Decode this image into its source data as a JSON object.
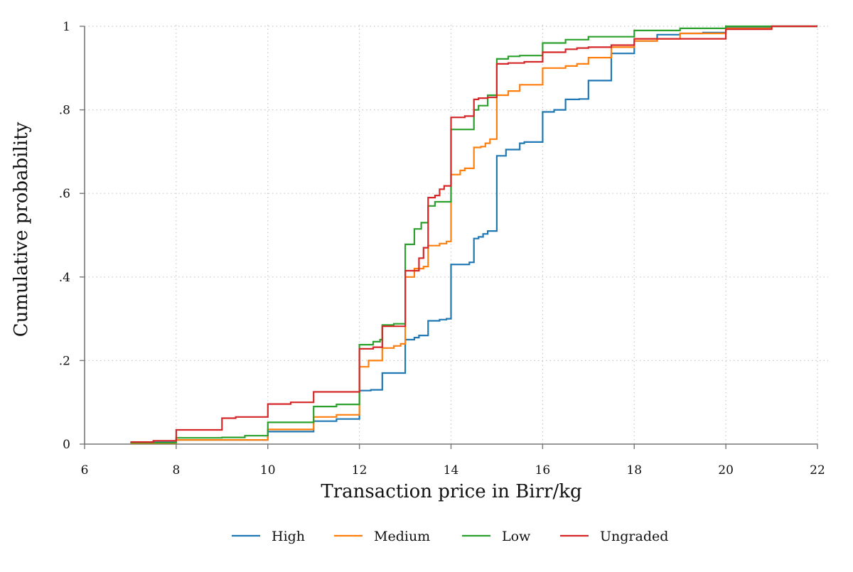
{
  "chart_data": {
    "type": "line",
    "step": true,
    "title": "",
    "xlabel": "Transaction price in Birr/kg",
    "ylabel": "Cumulative probability",
    "xlim": [
      6,
      22
    ],
    "ylim": [
      0,
      1
    ],
    "xticks": [
      6,
      8,
      10,
      12,
      14,
      16,
      18,
      20,
      22
    ],
    "yticks": [
      0,
      0.2,
      0.4,
      0.6,
      0.8,
      1
    ],
    "xtick_labels": [
      "6",
      "8",
      "10",
      "12",
      "14",
      "16",
      "18",
      "20",
      "22"
    ],
    "ytick_labels": [
      "0",
      ".2",
      ".4",
      ".6",
      ".8",
      "1"
    ],
    "grid": true,
    "legend_position": "bottom",
    "series": [
      {
        "name": "High",
        "color": "#1f77b4",
        "points": [
          [
            7,
            0.004
          ],
          [
            8,
            0.01
          ],
          [
            10,
            0.03
          ],
          [
            11,
            0.055
          ],
          [
            11.5,
            0.06
          ],
          [
            12,
            0.128
          ],
          [
            12.25,
            0.13
          ],
          [
            12.5,
            0.17
          ],
          [
            13,
            0.25
          ],
          [
            13.2,
            0.255
          ],
          [
            13.3,
            0.26
          ],
          [
            13.5,
            0.295
          ],
          [
            13.75,
            0.298
          ],
          [
            13.9,
            0.3
          ],
          [
            14,
            0.43
          ],
          [
            14.4,
            0.435
          ],
          [
            14.5,
            0.492
          ],
          [
            14.6,
            0.496
          ],
          [
            14.7,
            0.503
          ],
          [
            14.8,
            0.51
          ],
          [
            15,
            0.69
          ],
          [
            15.2,
            0.705
          ],
          [
            15.5,
            0.72
          ],
          [
            15.6,
            0.723
          ],
          [
            16,
            0.795
          ],
          [
            16.25,
            0.8
          ],
          [
            16.5,
            0.825
          ],
          [
            16.8,
            0.826
          ],
          [
            17,
            0.87
          ],
          [
            17.5,
            0.935
          ],
          [
            18,
            0.965
          ],
          [
            18.5,
            0.98
          ],
          [
            19,
            0.983
          ],
          [
            19.5,
            0.985
          ],
          [
            20,
            0.998
          ],
          [
            21,
            1
          ],
          [
            22,
            1
          ]
        ]
      },
      {
        "name": "Medium",
        "color": "#ff7f0e",
        "points": [
          [
            7,
            0.002
          ],
          [
            8,
            0.01
          ],
          [
            9.5,
            0.01
          ],
          [
            10,
            0.035
          ],
          [
            11,
            0.065
          ],
          [
            11.5,
            0.07
          ],
          [
            12,
            0.185
          ],
          [
            12.2,
            0.2
          ],
          [
            12.5,
            0.23
          ],
          [
            12.75,
            0.235
          ],
          [
            12.9,
            0.24
          ],
          [
            13,
            0.4
          ],
          [
            13.2,
            0.42
          ],
          [
            13.4,
            0.425
          ],
          [
            13.5,
            0.475
          ],
          [
            13.75,
            0.48
          ],
          [
            13.9,
            0.485
          ],
          [
            14,
            0.645
          ],
          [
            14.2,
            0.655
          ],
          [
            14.3,
            0.66
          ],
          [
            14.5,
            0.71
          ],
          [
            14.65,
            0.712
          ],
          [
            14.75,
            0.72
          ],
          [
            14.85,
            0.73
          ],
          [
            15,
            0.835
          ],
          [
            15.25,
            0.845
          ],
          [
            15.5,
            0.86
          ],
          [
            16,
            0.9
          ],
          [
            16.5,
            0.905
          ],
          [
            16.75,
            0.91
          ],
          [
            17,
            0.925
          ],
          [
            17.5,
            0.95
          ],
          [
            18,
            0.965
          ],
          [
            18.5,
            0.97
          ],
          [
            19,
            0.983
          ],
          [
            20,
            0.995
          ],
          [
            21,
            1
          ],
          [
            22,
            1
          ]
        ]
      },
      {
        "name": "Low",
        "color": "#2ca02c",
        "points": [
          [
            7,
            0.003
          ],
          [
            8,
            0.015
          ],
          [
            9,
            0.016
          ],
          [
            9.5,
            0.02
          ],
          [
            10,
            0.052
          ],
          [
            11,
            0.09
          ],
          [
            11.5,
            0.095
          ],
          [
            12,
            0.238
          ],
          [
            12.3,
            0.245
          ],
          [
            12.45,
            0.25
          ],
          [
            12.5,
            0.285
          ],
          [
            12.75,
            0.288
          ],
          [
            13,
            0.478
          ],
          [
            13.2,
            0.515
          ],
          [
            13.35,
            0.53
          ],
          [
            13.5,
            0.57
          ],
          [
            13.65,
            0.58
          ],
          [
            14,
            0.753
          ],
          [
            14.5,
            0.8
          ],
          [
            14.6,
            0.81
          ],
          [
            14.8,
            0.835
          ],
          [
            15,
            0.922
          ],
          [
            15.25,
            0.928
          ],
          [
            15.5,
            0.93
          ],
          [
            16,
            0.96
          ],
          [
            16.5,
            0.968
          ],
          [
            17,
            0.975
          ],
          [
            18,
            0.99
          ],
          [
            19,
            0.995
          ],
          [
            20,
            1
          ],
          [
            21,
            1
          ],
          [
            22,
            1
          ]
        ]
      },
      {
        "name": "Ungraded",
        "color": "#d62728",
        "points": [
          [
            7,
            0.005
          ],
          [
            7.5,
            0.008
          ],
          [
            8,
            0.034
          ],
          [
            9,
            0.062
          ],
          [
            9.3,
            0.065
          ],
          [
            10,
            0.096
          ],
          [
            10.5,
            0.1
          ],
          [
            11,
            0.125
          ],
          [
            12,
            0.228
          ],
          [
            12.3,
            0.232
          ],
          [
            12.5,
            0.282
          ],
          [
            13,
            0.415
          ],
          [
            13.3,
            0.445
          ],
          [
            13.4,
            0.47
          ],
          [
            13.5,
            0.59
          ],
          [
            13.65,
            0.595
          ],
          [
            13.75,
            0.61
          ],
          [
            13.85,
            0.618
          ],
          [
            14,
            0.782
          ],
          [
            14.3,
            0.785
          ],
          [
            14.5,
            0.825
          ],
          [
            14.6,
            0.828
          ],
          [
            14.8,
            0.83
          ],
          [
            15,
            0.91
          ],
          [
            15.25,
            0.912
          ],
          [
            15.6,
            0.915
          ],
          [
            16,
            0.938
          ],
          [
            16.5,
            0.945
          ],
          [
            16.75,
            0.948
          ],
          [
            17,
            0.95
          ],
          [
            17.5,
            0.955
          ],
          [
            18,
            0.97
          ],
          [
            19,
            0.97
          ],
          [
            20,
            0.993
          ],
          [
            21,
            1
          ],
          [
            22,
            1
          ]
        ]
      }
    ]
  }
}
